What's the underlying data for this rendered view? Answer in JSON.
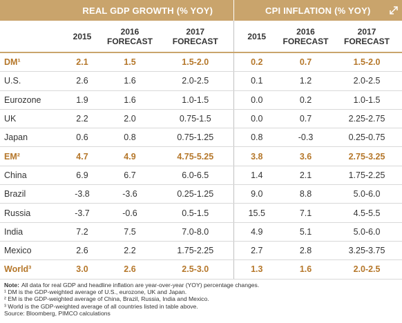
{
  "header": {
    "groups": [
      "REAL GDP GROWTH (% YOY)",
      "CPI INFLATION (% YOY)"
    ],
    "columns": [
      [
        "2015"
      ],
      [
        "2016",
        "FORECAST"
      ],
      [
        "2017",
        "FORECAST"
      ],
      [
        "2015"
      ],
      [
        "2016",
        "FORECAST"
      ],
      [
        "2017",
        "FORECAST"
      ]
    ]
  },
  "table": {
    "rows": [
      {
        "label": "DM¹",
        "highlight": true,
        "cells": [
          "2.1",
          "1.5",
          "1.5-2.0",
          "0.2",
          "0.7",
          "1.5-2.0"
        ]
      },
      {
        "label": "U.S.",
        "highlight": false,
        "cells": [
          "2.6",
          "1.6",
          "2.0-2.5",
          "0.1",
          "1.2",
          "2.0-2.5"
        ]
      },
      {
        "label": "Eurozone",
        "highlight": false,
        "cells": [
          "1.9",
          "1.6",
          "1.0-1.5",
          "0.0",
          "0.2",
          "1.0-1.5"
        ]
      },
      {
        "label": "UK",
        "highlight": false,
        "cells": [
          "2.2",
          "2.0",
          "0.75-1.5",
          "0.0",
          "0.7",
          "2.25-2.75"
        ]
      },
      {
        "label": "Japan",
        "highlight": false,
        "cells": [
          "0.6",
          "0.8",
          "0.75-1.25",
          "0.8",
          "-0.3",
          "0.25-0.75"
        ]
      },
      {
        "label": "EM²",
        "highlight": true,
        "cells": [
          "4.7",
          "4.9",
          "4.75-5.25",
          "3.8",
          "3.6",
          "2.75-3.25"
        ]
      },
      {
        "label": "China",
        "highlight": false,
        "cells": [
          "6.9",
          "6.7",
          "6.0-6.5",
          "1.4",
          "2.1",
          "1.75-2.25"
        ]
      },
      {
        "label": "Brazil",
        "highlight": false,
        "cells": [
          "-3.8",
          "-3.6",
          "0.25-1.25",
          "9.0",
          "8.8",
          "5.0-6.0"
        ]
      },
      {
        "label": "Russia",
        "highlight": false,
        "cells": [
          "-3.7",
          "-0.6",
          "0.5-1.5",
          "15.5",
          "7.1",
          "4.5-5.5"
        ]
      },
      {
        "label": "India",
        "highlight": false,
        "cells": [
          "7.2",
          "7.5",
          "7.0-8.0",
          "4.9",
          "5.1",
          "5.0-6.0"
        ]
      },
      {
        "label": "Mexico",
        "highlight": false,
        "cells": [
          "2.6",
          "2.2",
          "1.75-2.25",
          "2.7",
          "2.8",
          "3.25-3.75"
        ]
      },
      {
        "label": "World³",
        "highlight": true,
        "cells": [
          "3.0",
          "2.6",
          "2.5-3.0",
          "1.3",
          "1.6",
          "2.0-2.5"
        ]
      }
    ]
  },
  "notes": {
    "lead": "Note:",
    "lines": [
      "All data for real GDP and headline inflation are year-over-year (YOY) percentage changes.",
      "¹ DM is the GDP-weighted average of U.S., eurozone, UK and Japan.",
      "² EM is the GDP-weighted average of China, Brazil, Russia, India and Mexico.",
      "³ World is the GDP-weighted average of all countries listed in table above.",
      "Source: Bloomberg, PIMCO calculations"
    ]
  }
}
